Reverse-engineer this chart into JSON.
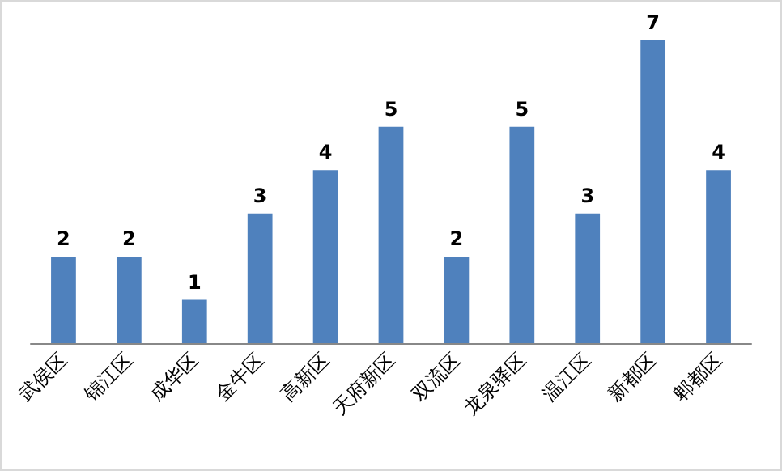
{
  "chart_data": {
    "type": "bar",
    "categories": [
      "武侯区",
      "锦江区",
      "成华区",
      "金牛区",
      "高新区",
      "天府新区",
      "双流区",
      "龙泉驿区",
      "温江区",
      "新都区",
      "郫都区"
    ],
    "values": [
      2,
      2,
      1,
      3,
      4,
      5,
      2,
      5,
      3,
      7,
      4
    ],
    "color": "#4f81bd",
    "data_labels": true
  }
}
